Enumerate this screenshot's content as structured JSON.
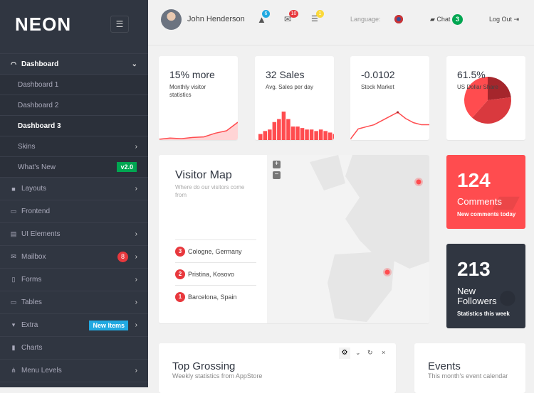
{
  "sidebar": {
    "logo": "NEON",
    "menu_icon": "hamburger-icon",
    "items": [
      {
        "label": "Dashboard",
        "icon": "gauge-icon"
      },
      {
        "label": "Dashboard 1"
      },
      {
        "label": "Dashboard 2"
      },
      {
        "label": "Dashboard 3"
      },
      {
        "label": "Skins"
      },
      {
        "label": "What's New",
        "badge": "v2.0"
      },
      {
        "label": "Layouts",
        "icon": "grid-icon"
      },
      {
        "label": "Frontend",
        "icon": "monitor-icon"
      },
      {
        "label": "UI Elements",
        "icon": "layout-icon"
      },
      {
        "label": "Mailbox",
        "icon": "mail-icon",
        "badge": "8"
      },
      {
        "label": "Forms",
        "icon": "form-icon"
      },
      {
        "label": "Tables",
        "icon": "table-icon"
      },
      {
        "label": "Extra",
        "icon": "archive-icon",
        "badge": "New Items"
      },
      {
        "label": "Charts",
        "icon": "bar-chart-icon"
      },
      {
        "label": "Menu Levels",
        "icon": "sitemap-icon"
      }
    ]
  },
  "header": {
    "user": "John Henderson",
    "alerts": "6",
    "messages": "10",
    "tasks": "1",
    "language_label": "Language:",
    "chat": "Chat",
    "chat_count": "3",
    "logout": "Log Out"
  },
  "stats": [
    {
      "value": "15% more",
      "label": "Monthly visitor statistics"
    },
    {
      "value": "32 Sales",
      "label": "Avg. Sales per day"
    },
    {
      "value": "-0.0102",
      "label": "Stock Market"
    },
    {
      "value": "61.5%",
      "label": "US Dollar Share"
    }
  ],
  "chart_data": [
    {
      "type": "area",
      "values": [
        0,
        1,
        0.5,
        1.5,
        2,
        5,
        7,
        14
      ]
    },
    {
      "type": "bar",
      "values": [
        4,
        6,
        7,
        12,
        14,
        19,
        14,
        9,
        9,
        8,
        7,
        7,
        6,
        7,
        6,
        5,
        4
      ]
    },
    {
      "type": "line",
      "values": [
        0,
        5,
        6,
        7,
        9,
        11,
        13,
        10,
        8,
        7,
        7
      ]
    },
    {
      "type": "pie",
      "values": [
        23,
        38.5,
        38.5
      ],
      "colors": [
        "#a5262c",
        "#d9393e",
        "#ff4c4f"
      ]
    }
  ],
  "map": {
    "title": "Visitor Map",
    "subtitle": "Where do our visitors come from",
    "zoom_in": "+",
    "zoom_out": "−",
    "locations": [
      {
        "rank": "3",
        "name": "Cologne, Germany"
      },
      {
        "rank": "2",
        "name": "Pristina, Kosovo"
      },
      {
        "rank": "1",
        "name": "Barcelona, Spain"
      }
    ]
  },
  "tiles": {
    "comments": {
      "value": "124",
      "label": "Comments",
      "sub": "New comments today"
    },
    "followers": {
      "value": "213",
      "label": "New Followers",
      "sub": "Statistics this week"
    }
  },
  "top_grossing": {
    "title": "Top Grossing",
    "subtitle": "Weekly statistics from AppStore"
  },
  "events": {
    "title": "Events",
    "subtitle": "This month's event calendar"
  },
  "colors": {
    "sidebar": "#303641",
    "accent": "#ff4c4f",
    "green": "#00a651",
    "blue": "#21a9e1"
  }
}
